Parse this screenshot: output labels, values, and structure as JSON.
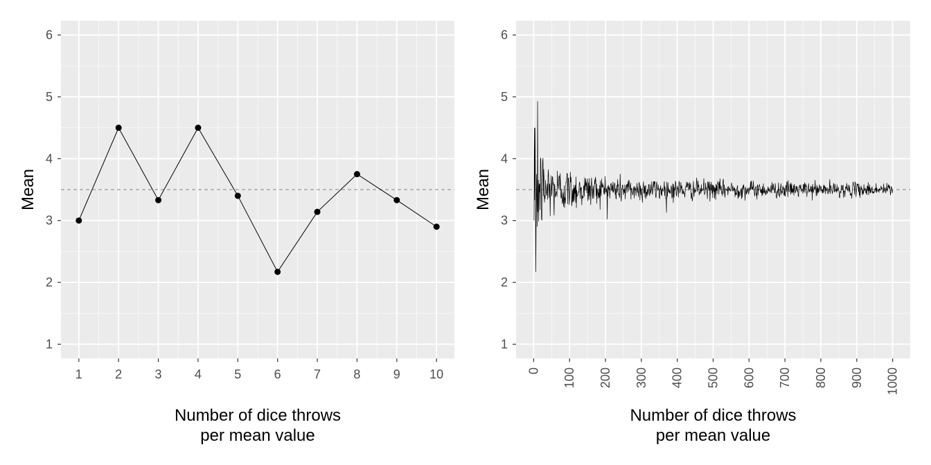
{
  "chart_data": [
    {
      "type": "line",
      "markers": true,
      "xlabel_line1": "Number of dice throws",
      "xlabel_line2": "per mean value",
      "ylabel": "Mean",
      "x": [
        1,
        2,
        3,
        4,
        5,
        6,
        7,
        8,
        9,
        10
      ],
      "y": [
        3.0,
        4.5,
        3.33,
        4.5,
        3.4,
        2.17,
        3.14,
        3.75,
        3.33,
        2.9
      ],
      "xlim": [
        0.55,
        10.45
      ],
      "ylim": [
        0.77,
        6.23
      ],
      "x_ticks": [
        1,
        2,
        3,
        4,
        5,
        6,
        7,
        8,
        9,
        10
      ],
      "y_ticks": [
        1,
        2,
        3,
        4,
        5,
        6
      ],
      "reference_line": 3.5,
      "grid": true,
      "panel_background": "#ebebeb"
    },
    {
      "type": "line",
      "markers": false,
      "xlabel_line1": "Number of dice throws",
      "xlabel_line2": "per mean value",
      "ylabel": "Mean",
      "x_range": [
        1,
        1000
      ],
      "seed": 12345,
      "known_points": [
        [
          1,
          3.0
        ],
        [
          2,
          4.5
        ],
        [
          3,
          3.33
        ],
        [
          4,
          4.5
        ],
        [
          5,
          3.4
        ],
        [
          6,
          2.17
        ],
        [
          7,
          3.14
        ],
        [
          8,
          3.75
        ],
        [
          9,
          3.33
        ],
        [
          10,
          2.9
        ]
      ],
      "xlim": [
        -49,
        1049
      ],
      "ylim": [
        0.77,
        6.23
      ],
      "x_ticks": [
        0,
        100,
        200,
        300,
        400,
        500,
        600,
        700,
        800,
        900,
        1000
      ],
      "y_ticks": [
        1,
        2,
        3,
        4,
        5,
        6
      ],
      "x_tick_rotation": -90,
      "reference_line": 3.5,
      "grid": true,
      "panel_background": "#ebebeb"
    }
  ]
}
